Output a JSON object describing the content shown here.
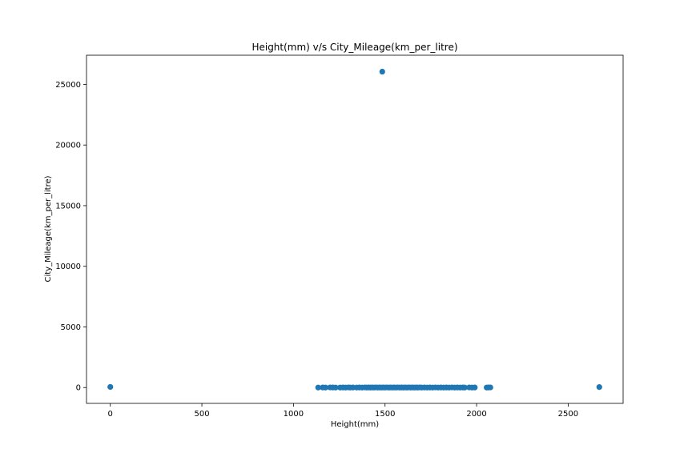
{
  "chart_data": {
    "type": "scatter",
    "title": "Height(mm) v/s City_Mileage(km_per_litre)",
    "xlabel": "Height(mm)",
    "ylabel": "City_Mileage(km_per_litre)",
    "xlim": [
      -130,
      2800
    ],
    "ylim": [
      -1305,
      27405
    ],
    "xticks": [
      0,
      500,
      1000,
      1500,
      2000,
      2500
    ],
    "yticks": [
      0,
      5000,
      10000,
      15000,
      20000,
      25000
    ],
    "grid": false,
    "marker_color": "#1f77b4",
    "points": [
      [
        0,
        50
      ],
      [
        1135,
        0
      ],
      [
        1160,
        5
      ],
      [
        1175,
        0
      ],
      [
        1200,
        10
      ],
      [
        1215,
        5
      ],
      [
        1230,
        0
      ],
      [
        1255,
        0
      ],
      [
        1270,
        5
      ],
      [
        1285,
        0
      ],
      [
        1300,
        10
      ],
      [
        1310,
        0
      ],
      [
        1325,
        5
      ],
      [
        1345,
        0
      ],
      [
        1360,
        5
      ],
      [
        1375,
        0
      ],
      [
        1390,
        10
      ],
      [
        1400,
        0
      ],
      [
        1410,
        5
      ],
      [
        1420,
        0
      ],
      [
        1430,
        5
      ],
      [
        1440,
        0
      ],
      [
        1450,
        10
      ],
      [
        1460,
        0
      ],
      [
        1470,
        5
      ],
      [
        1480,
        0
      ],
      [
        1490,
        5
      ],
      [
        1500,
        0
      ],
      [
        1510,
        10
      ],
      [
        1520,
        0
      ],
      [
        1530,
        5
      ],
      [
        1540,
        0
      ],
      [
        1550,
        5
      ],
      [
        1560,
        0
      ],
      [
        1570,
        10
      ],
      [
        1580,
        0
      ],
      [
        1590,
        5
      ],
      [
        1600,
        0
      ],
      [
        1610,
        5
      ],
      [
        1620,
        0
      ],
      [
        1630,
        10
      ],
      [
        1640,
        0
      ],
      [
        1650,
        5
      ],
      [
        1660,
        0
      ],
      [
        1670,
        5
      ],
      [
        1680,
        0
      ],
      [
        1690,
        10
      ],
      [
        1700,
        0
      ],
      [
        1715,
        5
      ],
      [
        1730,
        0
      ],
      [
        1745,
        5
      ],
      [
        1760,
        0
      ],
      [
        1775,
        10
      ],
      [
        1790,
        0
      ],
      [
        1805,
        5
      ],
      [
        1820,
        0
      ],
      [
        1835,
        5
      ],
      [
        1850,
        0
      ],
      [
        1865,
        10
      ],
      [
        1880,
        0
      ],
      [
        1895,
        5
      ],
      [
        1910,
        0
      ],
      [
        1925,
        5
      ],
      [
        1935,
        0
      ],
      [
        1960,
        10
      ],
      [
        1975,
        0
      ],
      [
        1990,
        5
      ],
      [
        2055,
        0
      ],
      [
        2065,
        5
      ],
      [
        2075,
        10
      ],
      [
        1485,
        26050
      ],
      [
        2670,
        40
      ]
    ]
  }
}
